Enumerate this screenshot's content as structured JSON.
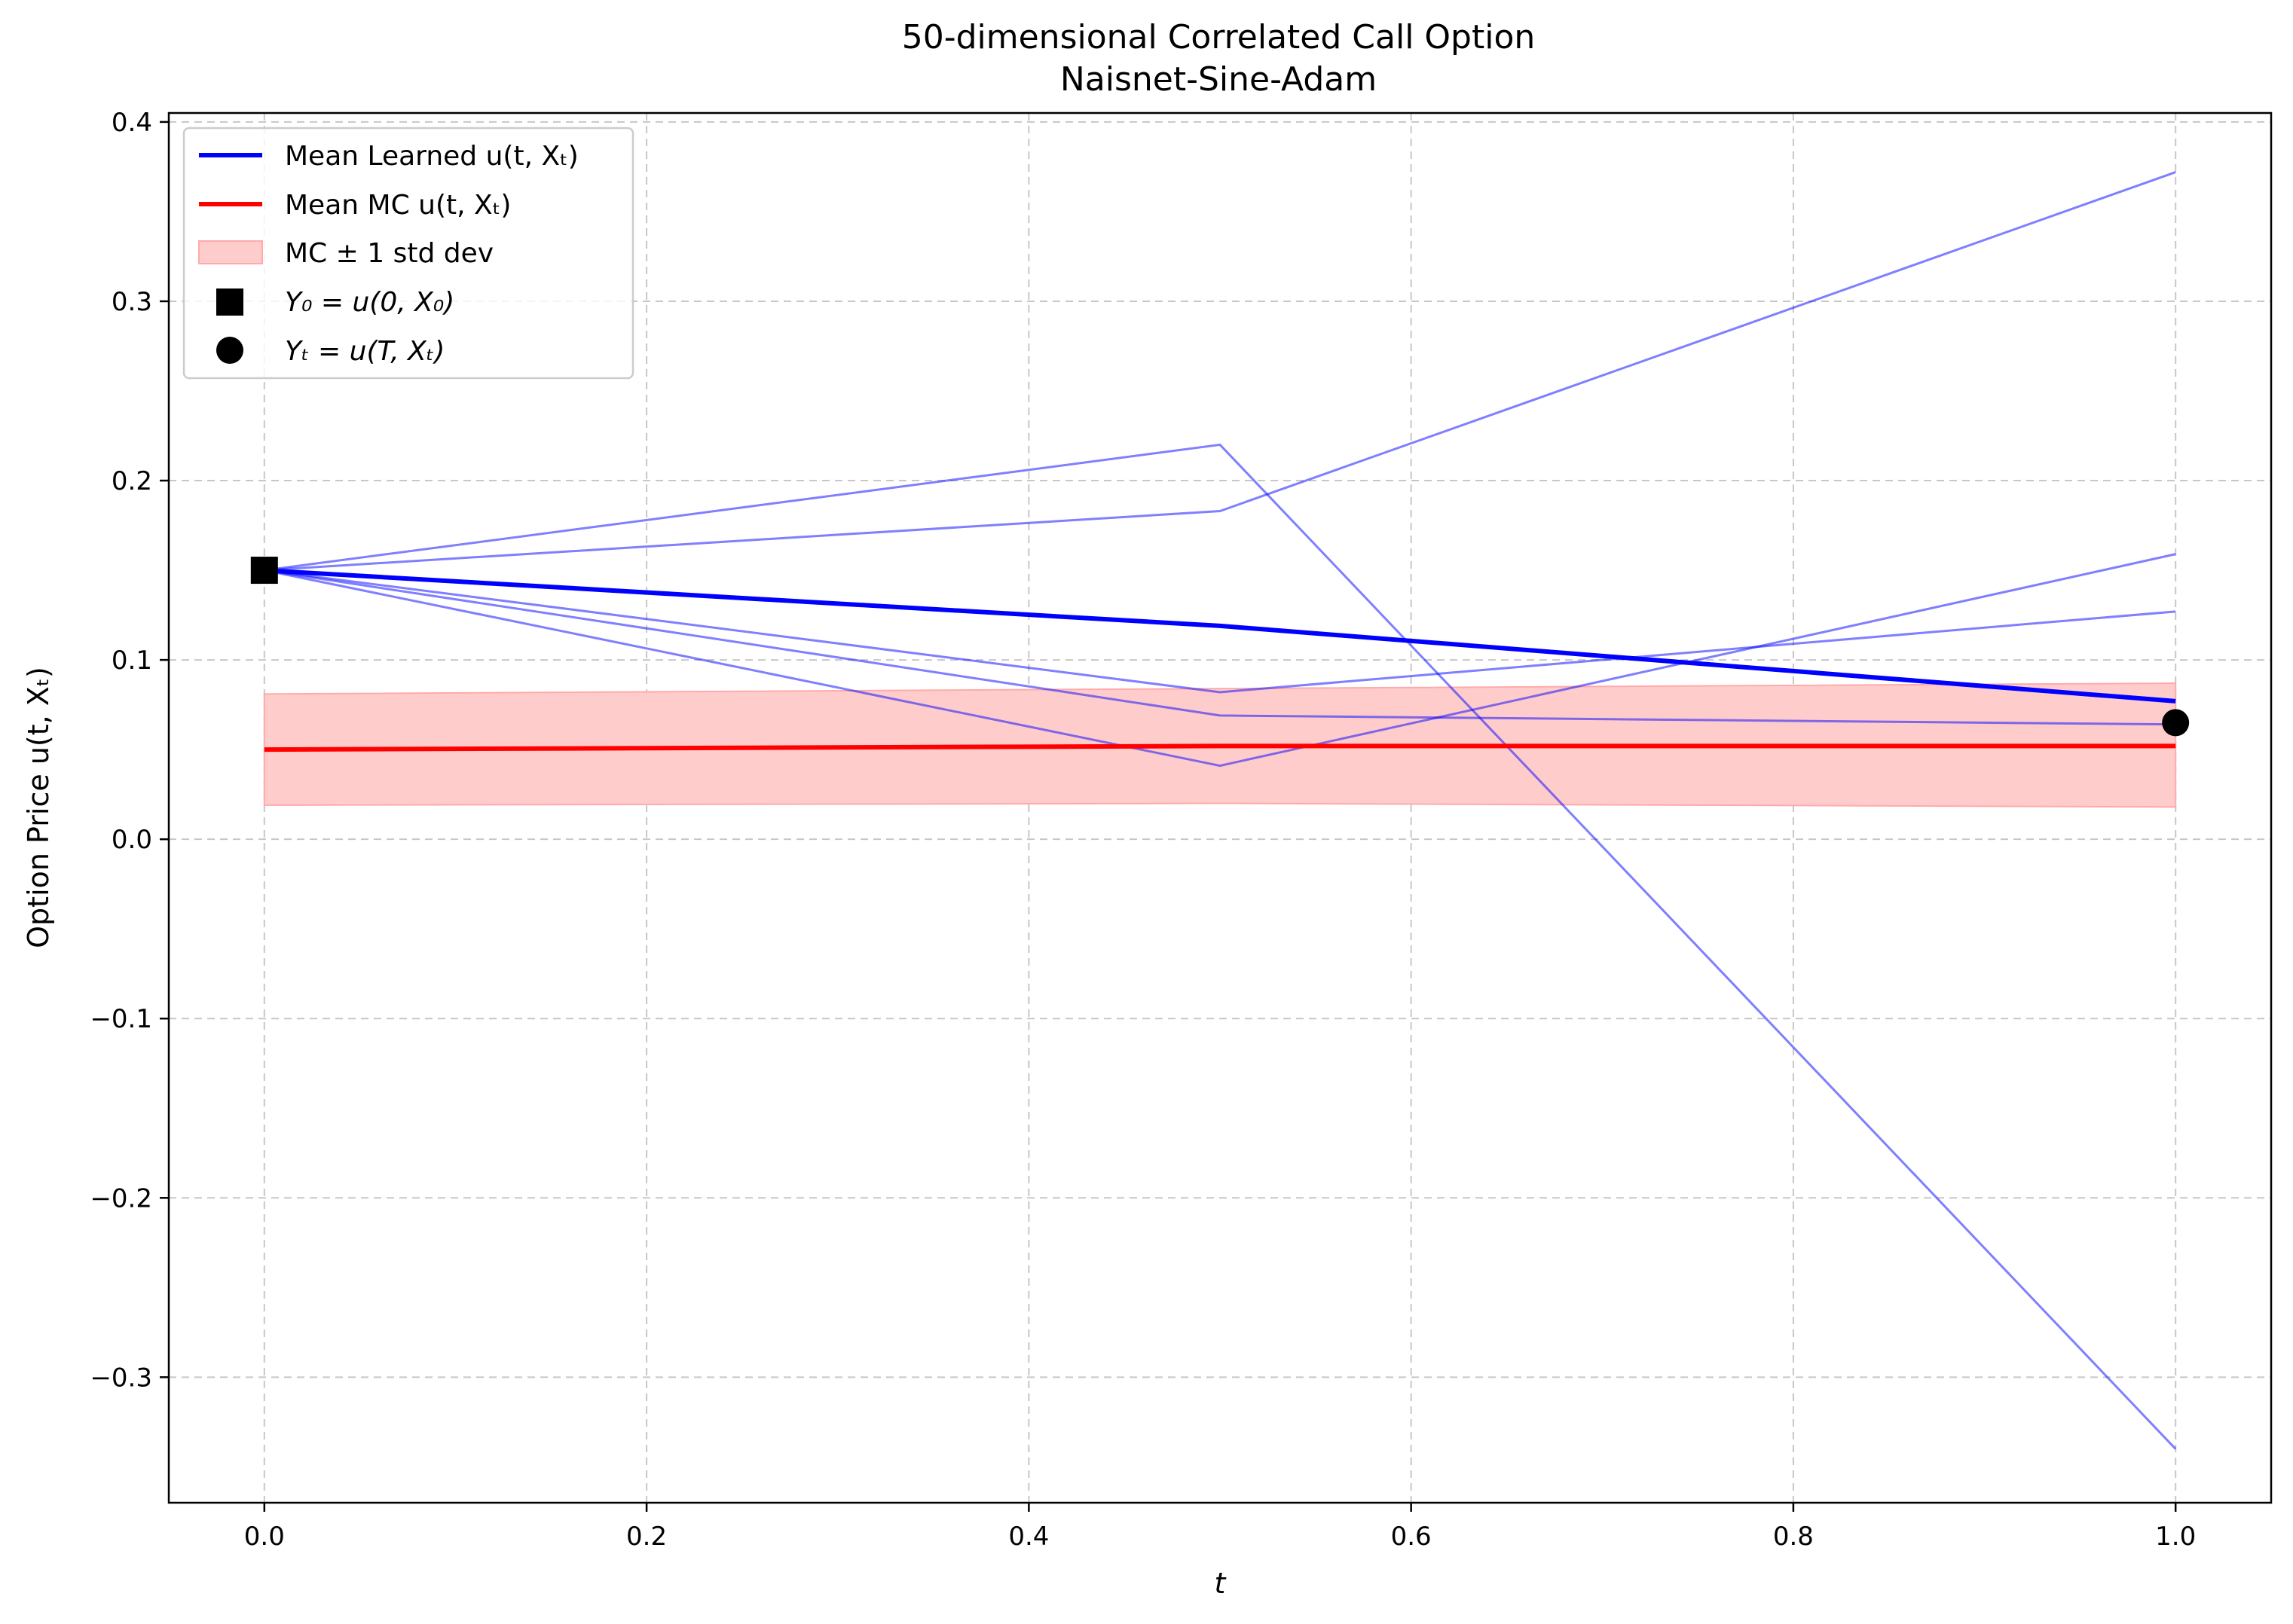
{
  "chart_data": {
    "type": "line",
    "title": "50-dimensional Correlated Call Option",
    "subtitle": "Naisnet-Sine-Adam",
    "xlabel": "t",
    "ylabel": "Option Price u(t, Xₜ)",
    "xlim": [
      -0.05,
      1.05
    ],
    "ylim": [
      -0.37,
      0.405
    ],
    "x_ticks": [
      0.0,
      0.2,
      0.4,
      0.6,
      0.8,
      1.0
    ],
    "x_tick_labels": [
      "0.0",
      "0.2",
      "0.4",
      "0.6",
      "0.8",
      "1.0"
    ],
    "y_ticks": [
      -0.3,
      -0.2,
      -0.1,
      0.0,
      0.1,
      0.2,
      0.3,
      0.4
    ],
    "y_tick_labels": [
      "−0.3",
      "−0.2",
      "−0.1",
      "0.0",
      "0.1",
      "0.2",
      "0.3",
      "0.4"
    ],
    "grid": true,
    "legend_position": "top-left",
    "colors": {
      "learned": "#0000ff",
      "mc": "#ff0000",
      "band": "#ffcccc",
      "band_edge": "#ffaaaa",
      "marker": "#000000"
    },
    "sample_paths": [
      {
        "x": [
          0.0,
          0.5,
          1.0
        ],
        "y": [
          0.15,
          0.22,
          -0.34
        ]
      },
      {
        "x": [
          0.0,
          0.5,
          1.0
        ],
        "y": [
          0.15,
          0.183,
          0.372
        ]
      },
      {
        "x": [
          0.0,
          0.5,
          1.0
        ],
        "y": [
          0.15,
          0.041,
          0.159
        ]
      },
      {
        "x": [
          0.0,
          0.5,
          1.0
        ],
        "y": [
          0.15,
          0.082,
          0.127
        ]
      },
      {
        "x": [
          0.0,
          0.5,
          1.0
        ],
        "y": [
          0.15,
          0.069,
          0.064
        ]
      }
    ],
    "series": [
      {
        "name": "Mean Learned u(t, Xₜ)",
        "x": [
          0.0,
          0.5,
          1.0
        ],
        "y": [
          0.15,
          0.119,
          0.077
        ]
      },
      {
        "name": "Mean MC u(t, Xₜ)",
        "x": [
          0.0,
          0.5,
          1.0
        ],
        "y": [
          0.05,
          0.052,
          0.052
        ]
      }
    ],
    "band": {
      "name": "MC ± 1 std dev",
      "x": [
        0.0,
        0.5,
        1.0
      ],
      "upper": [
        0.081,
        0.084,
        0.087
      ],
      "lower": [
        0.019,
        0.02,
        0.018
      ]
    },
    "markers": [
      {
        "name": "Y₀ = u(0, X₀)",
        "shape": "square",
        "x": 0.0,
        "y": 0.15
      },
      {
        "name": "Yₜ = u(T, Xₜ)",
        "shape": "circle",
        "x": 1.0,
        "y": 0.065
      }
    ]
  }
}
